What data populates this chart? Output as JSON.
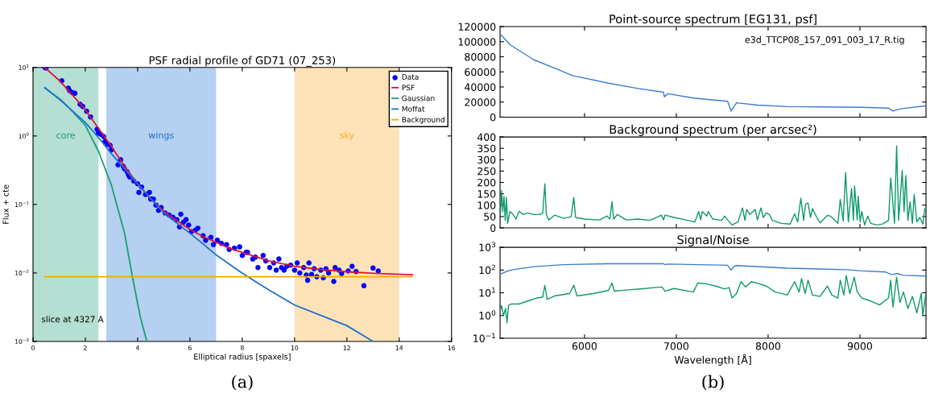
{
  "chart_data": [
    {
      "type": "line",
      "title": "PSF radial profile of GD71 (07_253)",
      "xlabel": "Elliptical radius [spaxels]",
      "ylabel": "Flux + cte",
      "log": "y",
      "legend": "top right",
      "grid": false,
      "xlim": [
        0,
        16
      ],
      "xticks": [
        0,
        2,
        4,
        6,
        8,
        10,
        12,
        14,
        16
      ],
      "ylim": [
        0.001,
        10
      ],
      "yticks": [
        {
          "value": 0.001,
          "label": "10$^{−3}$"
        },
        {
          "value": 0.01,
          "label": "10$^{−2}$"
        },
        {
          "value": 0.1,
          "label": "10$^{−1}$"
        },
        {
          "value": 1,
          "label": "10$^{0}$"
        },
        {
          "value": 10,
          "label": "10$^{1}$"
        }
      ],
      "bands": [
        {
          "axis": "x",
          "from": 0,
          "to": 2.5,
          "label": "core",
          "color": "#1b9e77"
        },
        {
          "axis": "x",
          "from": 2.8,
          "to": 7.0,
          "label": "wings",
          "color": "#1f6fd0"
        },
        {
          "axis": "x",
          "from": 10,
          "to": 14,
          "label": "sky",
          "color": "#f9a825"
        }
      ],
      "series": [
        {
          "name": "Data",
          "type": "scatter",
          "marker": "circle",
          "color": "#0000ff",
          "x": [
            0.45,
            0.5,
            1.1,
            1.35,
            1.4,
            1.5,
            1.6,
            1.8,
            1.9,
            2.05,
            2.2,
            2.45,
            2.5,
            2.6,
            2.7,
            2.75,
            2.85,
            2.95,
            3.0,
            3.25,
            3.35,
            3.45,
            3.5,
            3.6,
            3.65,
            3.7,
            3.85,
            4.0,
            4.05,
            4.15,
            4.3,
            4.45,
            4.5,
            4.6,
            4.7,
            4.8,
            4.9,
            5.05,
            5.2,
            5.35,
            5.5,
            5.6,
            5.65,
            5.75,
            5.85,
            5.95,
            6.05,
            6.2,
            6.3,
            6.5,
            6.6,
            6.8,
            6.9,
            7.05,
            7.2,
            7.4,
            7.5,
            7.7,
            7.9,
            8.0,
            8.15,
            8.2,
            8.4,
            8.5,
            8.6,
            8.8,
            8.9,
            9.05,
            9.2,
            9.3,
            9.4,
            9.5,
            9.6,
            9.7,
            9.85,
            10.0,
            10.1,
            10.2,
            10.35,
            10.45,
            10.5,
            10.55,
            10.65,
            10.75,
            10.85,
            11.0,
            11.1,
            11.2,
            11.3,
            11.5,
            11.55,
            11.7,
            11.8,
            12.05,
            12.2,
            12.35,
            12.65,
            13.0,
            13.2
          ],
          "values": [
            10,
            9.8,
            6.4,
            5.0,
            4.6,
            4.3,
            4.2,
            2.9,
            2.7,
            2.3,
            1.9,
            1.25,
            1.1,
            1.05,
            0.98,
            0.83,
            0.76,
            0.73,
            0.63,
            0.38,
            0.45,
            0.36,
            0.33,
            0.3,
            0.27,
            0.25,
            0.22,
            0.2,
            0.15,
            0.18,
            0.14,
            0.15,
            0.12,
            0.12,
            0.098,
            0.082,
            0.09,
            0.075,
            0.07,
            0.065,
            0.06,
            0.047,
            0.072,
            0.055,
            0.06,
            0.05,
            0.04,
            0.042,
            0.045,
            0.035,
            0.03,
            0.033,
            0.026,
            0.03,
            0.027,
            0.026,
            0.022,
            0.023,
            0.024,
            0.018,
            0.02,
            0.02,
            0.016,
            0.017,
            0.012,
            0.018,
            0.015,
            0.012,
            0.014,
            0.011,
            0.016,
            0.012,
            0.011,
            0.0125,
            0.013,
            0.011,
            0.014,
            0.01,
            0.012,
            0.0093,
            0.0078,
            0.014,
            0.0095,
            0.0115,
            0.0088,
            0.011,
            0.0085,
            0.0115,
            0.01,
            0.0075,
            0.012,
            0.011,
            0.0098,
            0.0107,
            0.0125,
            0.0105,
            0.0065,
            0.0118,
            0.0107
          ]
        },
        {
          "name": "PSF",
          "type": "line",
          "color": "#dc143c",
          "x": [
            0.45,
            1.0,
            1.5,
            2.0,
            2.5,
            3.0,
            3.5,
            4.0,
            4.5,
            5.0,
            5.5,
            6.0,
            6.5,
            7.0,
            7.5,
            8.0,
            9.0,
            10,
            11,
            12,
            13,
            14.5
          ],
          "values": [
            10,
            6.5,
            4.0,
            2.4,
            1.3,
            0.7,
            0.36,
            0.2,
            0.12,
            0.08,
            0.058,
            0.043,
            0.034,
            0.028,
            0.023,
            0.02,
            0.015,
            0.0125,
            0.0112,
            0.0104,
            0.0099,
            0.0094
          ]
        },
        {
          "name": "Gaussian",
          "type": "line",
          "color": "#1b9e77",
          "x": [
            0.45,
            1.1,
            1.5,
            2.0,
            2.5,
            3.0,
            3.5,
            3.8,
            4.1,
            4.35
          ],
          "values": [
            5.0,
            3.3,
            2.3,
            1.43,
            0.6,
            0.19,
            0.038,
            0.0088,
            0.0023,
            0.001
          ]
        },
        {
          "name": "Moffat",
          "type": "line",
          "color": "#1f6fd0",
          "x": [
            0.45,
            1.1,
            2.0,
            2.5,
            3.0,
            4.0,
            5.0,
            6.0,
            7.0,
            8.0,
            9.0,
            10,
            11,
            12,
            13
          ],
          "values": [
            5.1,
            3.2,
            1.57,
            0.95,
            0.55,
            0.2,
            0.075,
            0.038,
            0.0184,
            0.0099,
            0.0057,
            0.0034,
            0.0024,
            0.0017,
            0.001
          ]
        },
        {
          "name": "Background",
          "type": "line",
          "color": "#ffa500",
          "x": [
            0.45,
            14.5
          ],
          "values": [
            0.0088,
            0.0088
          ]
        }
      ],
      "annotations": [
        "slice at 4327 A",
        "(a)"
      ]
    },
    {
      "type": "line",
      "title": "Point-source spectrum [EG131, psf]",
      "tick_labels": "y",
      "grid": false,
      "xlim": [
        5080,
        9720
      ],
      "xticks": [
        6000,
        7000,
        8000,
        9000
      ],
      "ylim": [
        0,
        120000
      ],
      "yticks": [
        0,
        20000,
        40000,
        60000,
        80000,
        100000,
        120000
      ],
      "series": [
        {
          "color": "#3a7dd0",
          "x": [
            5084,
            5188,
            5448,
            5675,
            5870,
            6260,
            6584,
            6860,
            6870,
            6909,
            7201,
            7559,
            7597,
            7656,
            7883,
            8208,
            9020,
            9312,
            9360,
            9441,
            9718
          ],
          "values": [
            110000,
            96000,
            76000,
            65000,
            55000,
            45000,
            38000,
            33000,
            27000,
            31000,
            25000,
            21000,
            8000,
            19000,
            16000,
            14000,
            13000,
            12000,
            8000,
            11000,
            15000
          ]
        }
      ],
      "annotations": [
        "e3d_TTCP08_157_091_003_17_R.tig"
      ]
    },
    {
      "type": "line",
      "title": "Background spectrum (per arcsec²)",
      "tick_labels": "y",
      "grid": false,
      "xlim": [
        5080,
        9720
      ],
      "xticks": [
        6000,
        7000,
        8000,
        9000
      ],
      "ylim": [
        0,
        400
      ],
      "yticks": [
        0,
        50,
        100,
        150,
        200,
        250,
        300,
        350,
        400
      ],
      "series": [
        {
          "color": "#0e9a6a",
          "x": [
            5084,
            5097,
            5110,
            5123,
            5136,
            5149,
            5162,
            5188,
            5221,
            5253,
            5286,
            5334,
            5383,
            5448,
            5513,
            5545,
            5568,
            5584,
            5610,
            5675,
            5773,
            5854,
            5883,
            5903,
            6000,
            6162,
            6244,
            6276,
            6299,
            6318,
            6357,
            6455,
            6584,
            6714,
            6838,
            6860,
            6877,
            6974,
            7104,
            7201,
            7244,
            7266,
            7283,
            7331,
            7347,
            7396,
            7494,
            7526,
            7559,
            7607,
            7672,
            7721,
            7747,
            7766,
            7802,
            7835,
            7860,
            7883,
            7922,
            7948,
            7981,
            8013,
            8046,
            8143,
            8240,
            8289,
            8322,
            8357,
            8387,
            8409,
            8435,
            8461,
            8484,
            8523,
            8565,
            8646,
            8679,
            8760,
            8786,
            8818,
            8844,
            8874,
            8909,
            8929,
            8942,
            8971,
            8981,
            9003,
            9020,
            9052,
            9085,
            9117,
            9182,
            9247,
            9312,
            9335,
            9351,
            9377,
            9400,
            9422,
            9461,
            9481,
            9500,
            9523,
            9546,
            9572,
            9591,
            9620,
            9653,
            9685,
            9708,
            9718
          ],
          "values": [
            59,
            164,
            72,
            138,
            33,
            134,
            20,
            72,
            59,
            39,
            72,
            59,
            66,
            59,
            59,
            66,
            194,
            59,
            35,
            56,
            42,
            49,
            134,
            46,
            39,
            35,
            52,
            39,
            115,
            39,
            59,
            35,
            39,
            33,
            56,
            35,
            56,
            46,
            35,
            26,
            72,
            35,
            72,
            52,
            72,
            39,
            33,
            52,
            35,
            13,
            26,
            88,
            33,
            81,
            59,
            72,
            81,
            35,
            88,
            46,
            66,
            59,
            33,
            20,
            17,
            62,
            26,
            131,
            33,
            105,
            109,
            46,
            85,
            52,
            22,
            55,
            52,
            20,
            125,
            30,
            243,
            26,
            174,
            33,
            184,
            35,
            140,
            26,
            72,
            13,
            52,
            20,
            13,
            17,
            33,
            219,
            151,
            20,
            361,
            33,
            253,
            72,
            230,
            33,
            114,
            20,
            147,
            26,
            46,
            16,
            85,
            72
          ]
        }
      ]
    },
    {
      "type": "line",
      "title": "Signal/Noise",
      "xlabel": "Wavelength [Å]",
      "log": "y",
      "grid": false,
      "xlim": [
        5080,
        9720
      ],
      "xticks": [
        6000,
        7000,
        8000,
        9000
      ],
      "ylim": [
        0.1,
        1000
      ],
      "yticks": [
        {
          "value": 0.1,
          "label": "10$^{−1}$"
        },
        {
          "value": 1,
          "label": "10$^{0}$"
        },
        {
          "value": 10,
          "label": "10$^{1}$"
        },
        {
          "value": 100,
          "label": "10$^{2}$"
        },
        {
          "value": 1000,
          "label": "10$^{3}$"
        }
      ],
      "series": [
        {
          "color": "#3a7dd0",
          "x": [
            5084,
            5156,
            5221,
            5448,
            5773,
            6260,
            6860,
            6877,
            6909,
            7559,
            7597,
            7624,
            7656,
            8208,
            8857,
            9020,
            9279,
            9344,
            9409,
            9474,
            9718
          ],
          "values": [
            66,
            89,
            104,
            141,
            174,
            190,
            190,
            174,
            184,
            163,
            98,
            141,
            158,
            121,
            104,
            92,
            82,
            64,
            70,
            59,
            55
          ]
        },
        {
          "color": "#0e9a6a",
          "x": [
            5084,
            5097,
            5117,
            5140,
            5156,
            5172,
            5205,
            5286,
            5383,
            5480,
            5545,
            5568,
            5594,
            5675,
            5838,
            5883,
            5919,
            6097,
            6260,
            6299,
            6325,
            6455,
            6584,
            6844,
            6877,
            6974,
            7185,
            7234,
            7331,
            7429,
            7526,
            7575,
            7607,
            7656,
            7705,
            7753,
            7818,
            7883,
            7981,
            8078,
            8208,
            8289,
            8338,
            8364,
            8403,
            8435,
            8484,
            8565,
            8646,
            8695,
            8760,
            8786,
            8825,
            8851,
            8890,
            8938,
            8971,
            9020,
            9117,
            9214,
            9312,
            9335,
            9360,
            9400,
            9435,
            9474,
            9523,
            9572,
            9620,
            9669,
            9685,
            9718
          ],
          "values": [
            1.76,
            2.77,
            0.96,
            2.05,
            0.48,
            2.77,
            3.22,
            3.22,
            4.36,
            5.9,
            6.46,
            21,
            5.07,
            7.3,
            9.3,
            21.6,
            7.3,
            9.3,
            12.6,
            26.7,
            11.8,
            13.3,
            14.6,
            18,
            11.8,
            15.5,
            10.8,
            26.7,
            24.4,
            19.7,
            14.6,
            17,
            5.9,
            9.3,
            31,
            18,
            31,
            26.7,
            19.7,
            10.8,
            8,
            31,
            10.8,
            42,
            9.3,
            36,
            8,
            6.9,
            19.7,
            8,
            5.9,
            36,
            8,
            57,
            9.3,
            49,
            10.8,
            5.9,
            4.36,
            2.94,
            5.9,
            36,
            2.38,
            49,
            3.75,
            10.8,
            2.05,
            6.9,
            1.3,
            9.3,
            0.96,
            9.3
          ]
        }
      ],
      "annotations": [
        "(b)"
      ]
    }
  ]
}
